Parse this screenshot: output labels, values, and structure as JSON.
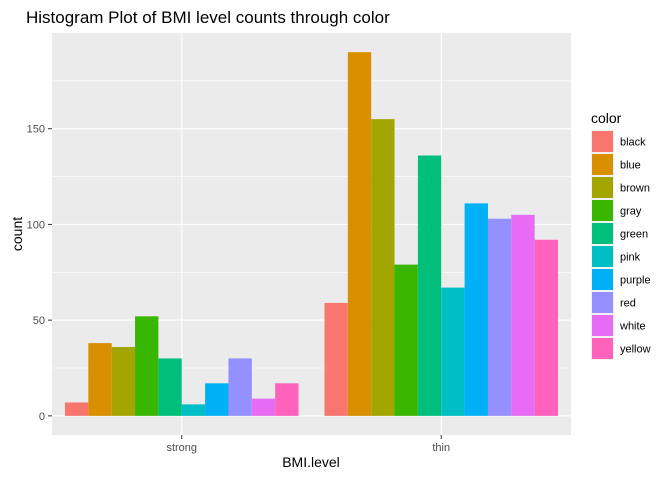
{
  "chart_data": {
    "type": "bar",
    "title": "Histogram Plot of BMI level counts through color",
    "xlabel": "BMI.level",
    "ylabel": "count",
    "categories": [
      "strong",
      "thin"
    ],
    "ylim": [
      -10,
      200
    ],
    "yticks": [
      0,
      50,
      100,
      150
    ],
    "grid": true,
    "legend": {
      "title": "color",
      "position": "right"
    },
    "series": [
      {
        "name": "black",
        "color": "#F8766D",
        "values": [
          7,
          59
        ]
      },
      {
        "name": "blue",
        "color": "#D89000",
        "values": [
          38,
          190
        ]
      },
      {
        "name": "brown",
        "color": "#A3A500",
        "values": [
          36,
          155
        ]
      },
      {
        "name": "gray",
        "color": "#39B600",
        "values": [
          52,
          79
        ]
      },
      {
        "name": "green",
        "color": "#00BF7D",
        "values": [
          30,
          136
        ]
      },
      {
        "name": "pink",
        "color": "#00BFC4",
        "values": [
          6,
          67
        ]
      },
      {
        "name": "purple",
        "color": "#00B0F6",
        "values": [
          17,
          111
        ]
      },
      {
        "name": "red",
        "color": "#9590FF",
        "values": [
          30,
          103
        ]
      },
      {
        "name": "white",
        "color": "#E76BF3",
        "values": [
          9,
          105
        ]
      },
      {
        "name": "yellow",
        "color": "#FF62BC",
        "values": [
          17,
          92
        ]
      }
    ]
  }
}
